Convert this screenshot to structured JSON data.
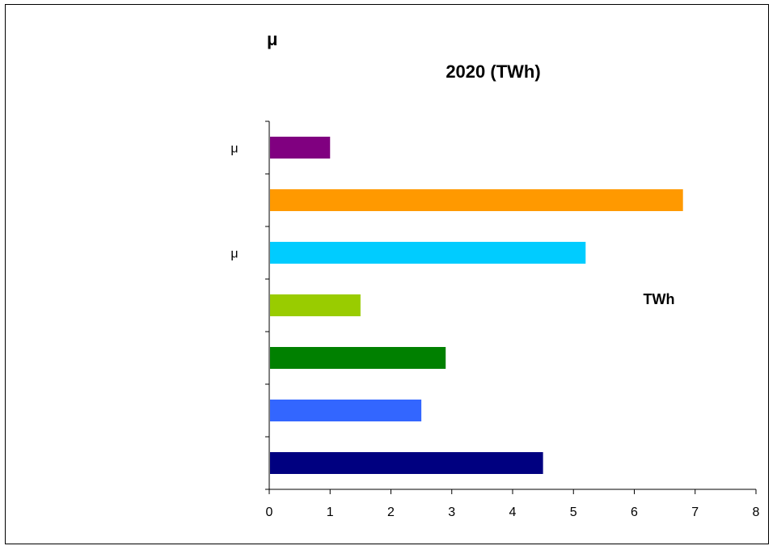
{
  "chart_data": {
    "type": "bar",
    "orientation": "horizontal",
    "title_symbol": "μ",
    "title": "2020 (TWh)",
    "unit_annotation": "TWh",
    "category_labels": [
      "",
      "",
      "",
      "",
      "μ",
      "",
      "μ"
    ],
    "values": [
      4.5,
      2.5,
      2.9,
      1.5,
      5.2,
      6.8,
      1.0
    ],
    "colors": [
      "#000080",
      "#3366ff",
      "#008000",
      "#99cc00",
      "#00ccff",
      "#ff9900",
      "#800080"
    ],
    "x_ticks": [
      "0",
      "1",
      "2",
      "3",
      "4",
      "5",
      "6",
      "7",
      "8"
    ],
    "xlim": [
      0,
      8
    ],
    "grid": false,
    "legend": "none"
  }
}
